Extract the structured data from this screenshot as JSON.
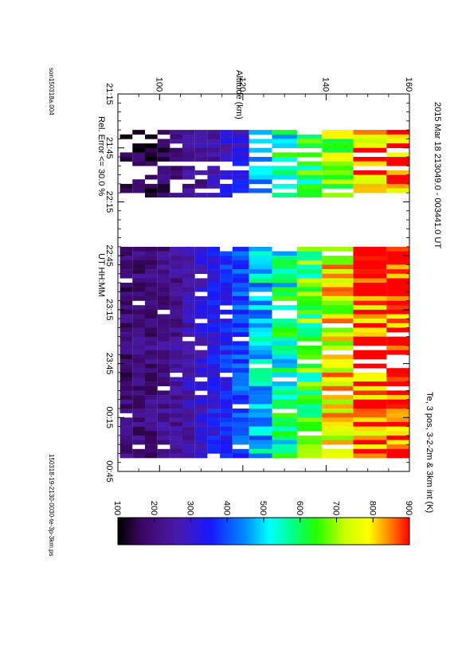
{
  "page": {
    "title": "2015 Mar 18   213049.0 - 003441.0 UT",
    "parameter_label": "Te, 3 pos, 3-2-2m & 3km int (K)",
    "error_note": "Rel. Error <= 30.0 %",
    "left_footer": "son150318a.004",
    "right_footer": "150318-19-2130-0030-te-3p-3km.ps"
  },
  "chart_data": {
    "type": "heatmap",
    "title": "2015 Mar 18   213049.0 - 003441.0 UT",
    "xlabel": "UT  HH:MM",
    "ylabel": "Altitude (km)",
    "xticks": [
      "21:15",
      "21:45",
      "22:15",
      "22:45",
      "23:15",
      "23:45",
      "00:15",
      "00:45"
    ],
    "yticks": [
      "100",
      "120",
      "140",
      "160"
    ],
    "xlim": [
      "21:15",
      "00:45"
    ],
    "ylim": [
      90,
      160
    ],
    "colorbar": {
      "label": "Te, 3 pos, 3-2-2m & 3km int (K)",
      "ticks": [
        "100",
        "200",
        "300",
        "400",
        "500",
        "600",
        "700",
        "800",
        "900"
      ],
      "range": [
        100,
        900
      ],
      "colormap": "rainbow (black-purple-blue-cyan-green-yellow-red)"
    },
    "altitude_bins_km": [
      92,
      95,
      98,
      101,
      104,
      107,
      110,
      113,
      116,
      119,
      124,
      130,
      136,
      142,
      151,
      158
    ],
    "segments": [
      {
        "start": "21:35",
        "end": "22:12",
        "mean_te_profile_K": [
          130,
          150,
          140,
          170,
          200,
          220,
          240,
          260,
          300,
          320,
          480,
          550,
          620,
          700,
          820,
          850
        ]
      },
      {
        "start": "22:40",
        "end": "00:37",
        "mean_te_profile_K": [
          190,
          200,
          205,
          215,
          230,
          260,
          300,
          330,
          360,
          400,
          480,
          560,
          640,
          760,
          860,
          880
        ]
      }
    ],
    "notes": [
      "Rel. Error <= 30.0 %"
    ]
  },
  "colors": {
    "background": "#ffffff",
    "axis": "#000000"
  }
}
